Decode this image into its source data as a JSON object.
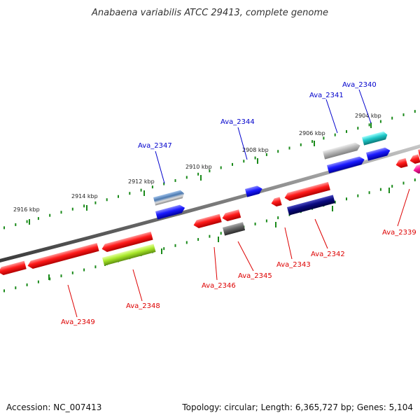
{
  "title": "Anabaena variabilis ATCC 29413, complete genome",
  "footer": {
    "accession": "Accession: NC_007413",
    "summary": "Topology: circular; Length: 6,365,727 bp; Genes: 5,104"
  },
  "ticks": [
    "2916 kbp",
    "2914 kbp",
    "2912 kbp",
    "2910 kbp",
    "2908 kbp",
    "2906 kbp",
    "2904 kbp"
  ],
  "genes": [
    {
      "id": "Ava_2339",
      "strand": "-",
      "color": "#ff1a1a"
    },
    {
      "id": "Ava_2340",
      "strand": "+",
      "color": "#1fc8c8"
    },
    {
      "id": "Ava_2341",
      "strand": "+",
      "color": "#b8b8b8"
    },
    {
      "id": "Ava_2342",
      "strand": "-",
      "color": "#0a0a80"
    },
    {
      "id": "Ava_2343",
      "strand": "-",
      "color": "#ff1a1a"
    },
    {
      "id": "Ava_2344",
      "strand": "+",
      "color": "#1a1aff"
    },
    {
      "id": "Ava_2345",
      "strand": "-",
      "color": "#666666"
    },
    {
      "id": "Ava_2346",
      "strand": "-",
      "color": "#ff1a1a"
    },
    {
      "id": "Ava_2347",
      "strand": "+",
      "color": "#4a78b0"
    },
    {
      "id": "Ava_2348",
      "strand": "-",
      "color": "#a8e82a"
    },
    {
      "id": "Ava_2349",
      "strand": "-",
      "color": "#ff1a1a"
    }
  ],
  "colors": {
    "plus_label": "#0000cc",
    "minus_label": "#dd0000",
    "tick": "#1a8a1a",
    "backbone": "#7a7a7a"
  }
}
